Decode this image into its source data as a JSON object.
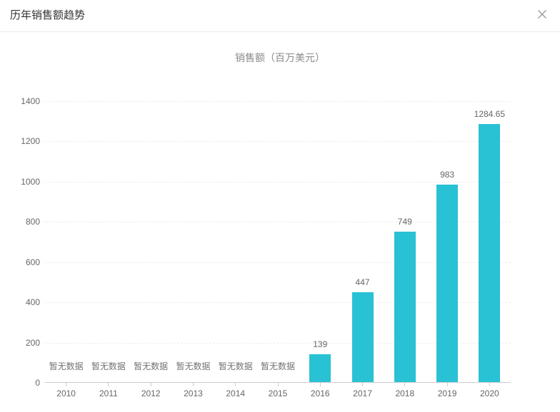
{
  "modal": {
    "title": "历年销售额趋势",
    "close_icon": "close"
  },
  "chart_data": {
    "type": "bar",
    "title": "销售额（百万美元）",
    "categories": [
      "2010",
      "2011",
      "2012",
      "2013",
      "2014",
      "2015",
      "2016",
      "2017",
      "2018",
      "2019",
      "2020"
    ],
    "values": [
      null,
      null,
      null,
      null,
      null,
      null,
      139,
      447,
      749,
      983,
      1284.65
    ],
    "no_data_label": "暂无数据",
    "xlabel": "",
    "ylabel": "",
    "ylim": [
      0,
      1400
    ],
    "ytick_step": 200,
    "grid": "horizontal dashed",
    "legend": "none",
    "bar_color": "#29c1d4",
    "axis_line_color": "#cccccc",
    "label_color": "#666666"
  }
}
